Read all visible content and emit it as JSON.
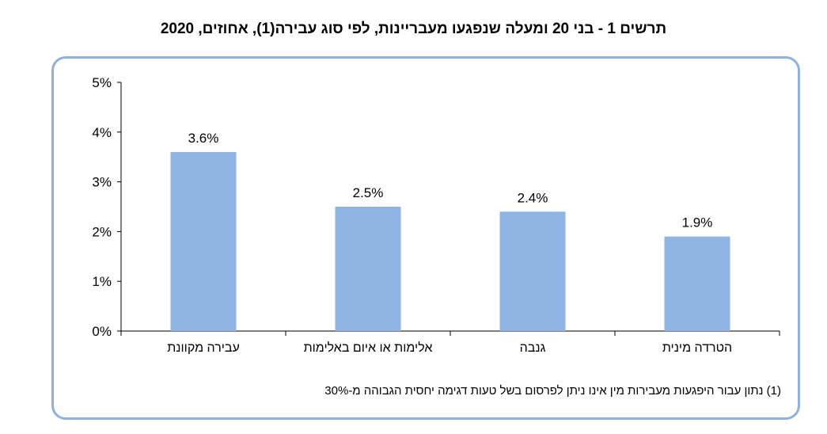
{
  "title": "תרשים 1 - בני 20 ומעלה שנפגעו מעבריינות, לפי סוג עבירה(1), אחוזים, 2020",
  "footnote": "(1) נתון עבור היפגעות מעבירות מין אינו ניתן לפרסום בשל טעות דגימה יחסית הגבוהה מ-30%",
  "chart_data": {
    "type": "bar",
    "categories": [
      "עבירה מקוונת",
      "אלימות או איום באלימות",
      "גנבה",
      "הטרדה מינית"
    ],
    "values": [
      3.6,
      2.5,
      2.4,
      1.9
    ],
    "value_labels": [
      "3.6%",
      "2.5%",
      "2.4%",
      "1.9%"
    ],
    "ylim": [
      0,
      5
    ],
    "yticks": [
      0,
      1,
      2,
      3,
      4,
      5
    ],
    "ytick_labels": [
      "0%",
      "1%",
      "2%",
      "3%",
      "4%",
      "5%"
    ],
    "bar_color": "#8fb4e3",
    "frame_color": "#8fb1dc",
    "grid": false,
    "legend": "none"
  }
}
